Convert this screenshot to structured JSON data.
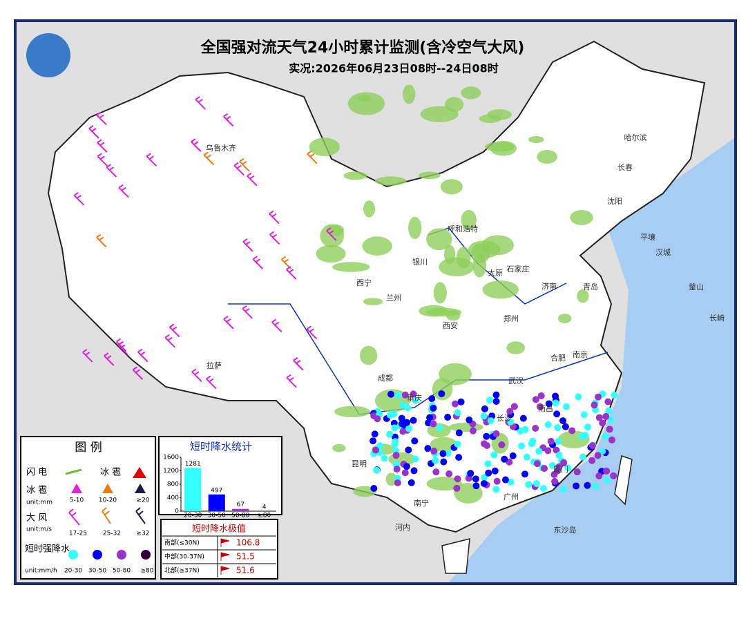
{
  "header": {
    "title": "全国强对流天气24小时累计监测(含冷空气大风)",
    "subtitle": "实况:2026年06月23日08时--24日08时"
  },
  "cities": [
    "哈尔滨",
    "长春",
    "沈阳",
    "呼和浩特",
    "太原",
    "石家庄",
    "济南",
    "青岛",
    "西宁",
    "兰州",
    "银川",
    "西安",
    "郑州",
    "合肥",
    "南京",
    "武汉",
    "成都",
    "重庆",
    "长沙",
    "南昌",
    "昆明",
    "南宁",
    "广州",
    "拉萨",
    "乌鲁木齐",
    "平壤",
    "汉城",
    "釜山",
    "长崎",
    "河内",
    "东沙岛",
    "厦门"
  ],
  "legend": {
    "title": "图 例",
    "lightning": "闪 电",
    "hail": "冰 雹",
    "hail_size": "冰 雹",
    "hail_unit": "unit:mm",
    "hail_levels": [
      "5-10",
      "10-20",
      "≥20"
    ],
    "wind": "大 风",
    "wind_unit": "unit:m/s",
    "wind_levels": [
      "17-25",
      "25-32",
      "≥32"
    ],
    "rain": "短时强降水",
    "rain_unit": "unit:mm/h",
    "rain_levels": [
      "20-30",
      "30-50",
      "50-80",
      "≥80"
    ]
  },
  "chart_data": {
    "type": "bar",
    "title": "短时降水统计",
    "categories": [
      "20-30",
      "30-50",
      "50-80",
      "≥80"
    ],
    "values": [
      1281,
      497,
      67,
      4
    ],
    "colors": [
      "#33ffff",
      "#0000ff",
      "#9933cc",
      "#330033"
    ],
    "ylim": [
      0,
      1600
    ],
    "yticks": [
      0,
      400,
      800,
      1200,
      1600
    ]
  },
  "extremes": {
    "title": "短时降水极值",
    "rows": [
      {
        "region": "南部(≤30N)",
        "value": 106.8
      },
      {
        "region": "中部(30-37N)",
        "value": 51.5
      },
      {
        "region": "北部(≥37N)",
        "value": 51.6
      }
    ]
  }
}
